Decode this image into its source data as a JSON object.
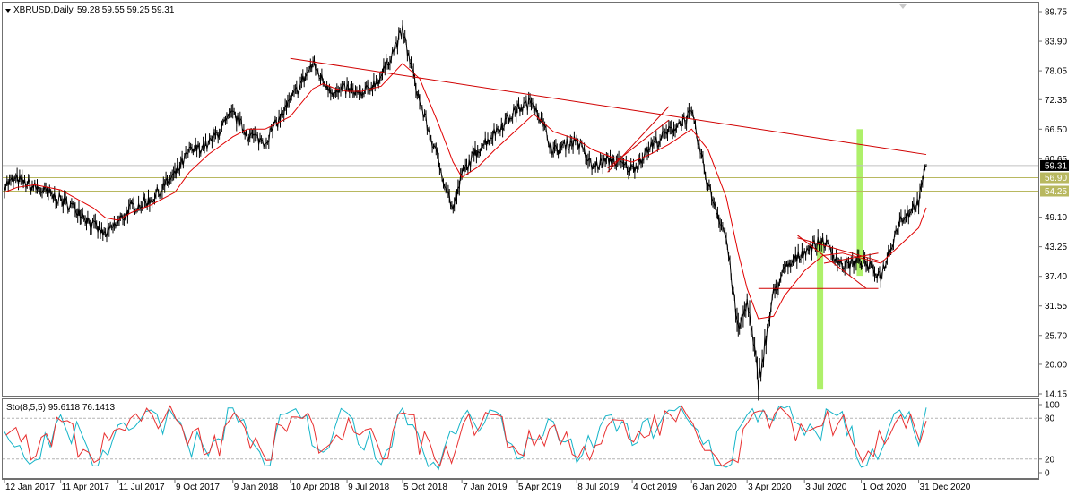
{
  "header": {
    "symbol": "XBRUSD,Daily",
    "ohlc": "59.28 59.55 59.25 59.31"
  },
  "oscillator_header": "Sto(8,5,5) 95.6118 76.1413",
  "colors": {
    "price": "#000000",
    "moving_average": "#e00000",
    "trendline": "#d00000",
    "horizontal_levels": "#b8b860",
    "current_price_line": "#c0c0c0",
    "highlight_bars": "#aef06a",
    "stoch_main": "#14b4c8",
    "stoch_signal": "#e83030",
    "border": "#707070"
  },
  "chart_data": [
    {
      "type": "line",
      "title": "XBRUSD,Daily",
      "x_tick_labels": [
        "12 Jan 2017",
        "11 Apr 2017",
        "11 Jul 2017",
        "9 Oct 2017",
        "9 Jan 2018",
        "10 Apr 2018",
        "9 Jul 2018",
        "5 Oct 2018",
        "7 Jan 2019",
        "5 Apr 2019",
        "8 Jul 2019",
        "4 Oct 2019",
        "6 Jan 2020",
        "3 Apr 2020",
        "3 Jul 2020",
        "1 Oct 2020",
        "31 Dec 2020"
      ],
      "y_tick_labels": [
        "89.75",
        "83.90",
        "78.05",
        "72.35",
        "66.50",
        "60.65",
        "49.10",
        "43.25",
        "37.40",
        "31.55",
        "25.70",
        "20.00",
        "14.15"
      ],
      "ylim": [
        14.15,
        89.75
      ],
      "x": [
        "12 Jan 2017",
        "1 Feb 2017",
        "1 Mar 2017",
        "11 Apr 2017",
        "10 May 2017",
        "1 Jun 2017",
        "21 Jun 2017",
        "11 Jul 2017",
        "1 Aug 2017",
        "1 Sep 2017",
        "9 Oct 2017",
        "1 Nov 2017",
        "1 Dec 2017",
        "9 Jan 2018",
        "1 Feb 2018",
        "1 Mar 2018",
        "10 Apr 2018",
        "16 May 2018",
        "1 Jun 2018",
        "21 Jun 2018",
        "9 Jul 2018",
        "1 Aug 2018",
        "1 Sep 2018",
        "5 Oct 2018",
        "1 Nov 2018",
        "1 Dec 2018",
        "24 Dec 2018",
        "7 Jan 2019",
        "1 Feb 2019",
        "1 Mar 2019",
        "5 Apr 2019",
        "1 May 2019",
        "1 Jun 2019",
        "8 Jul 2019",
        "1 Aug 2019",
        "1 Sep 2019",
        "4 Oct 2019",
        "1 Nov 2019",
        "1 Dec 2019",
        "6 Jan 2020",
        "1 Feb 2020",
        "1 Mar 2020",
        "20 Mar 2020",
        "3 Apr 2020",
        "21 Apr 2020",
        "15 May 2020",
        "1 Jun 2020",
        "3 Jul 2020",
        "1 Aug 2020",
        "1 Sep 2020",
        "1 Oct 2020",
        "1 Nov 2020",
        "1 Dec 2020",
        "31 Dec 2020",
        "12 Jan 2021"
      ],
      "series": [
        {
          "values": [
            55.5,
            56.5,
            55.0,
            52.5,
            50.5,
            47.5,
            45.5,
            48.0,
            51.0,
            52.5,
            57.5,
            62.0,
            63.5,
            69.5,
            65.5,
            64.0,
            72.0,
            79.5,
            76.0,
            73.5,
            74.5,
            73.0,
            77.0,
            86.0,
            72.0,
            60.0,
            50.5,
            57.5,
            62.5,
            66.0,
            70.5,
            72.0,
            62.0,
            64.5,
            59.0,
            60.5,
            58.5,
            63.0,
            66.0,
            69.5,
            55.5,
            45.0,
            26.5,
            32.5,
            16.5,
            34.0,
            38.5,
            42.5,
            44.5,
            39.5,
            40.5,
            37.5,
            48.5,
            52.0,
            59.31
          ]
        },
        {
          "values": [
            54.0,
            55.0,
            55.5,
            54.5,
            52.5,
            51.0,
            49.0,
            48.5,
            50.0,
            51.5,
            54.0,
            58.0,
            61.5,
            65.0,
            66.5,
            66.5,
            69.0,
            74.5,
            75.5,
            74.5,
            74.0,
            74.0,
            75.0,
            79.5,
            76.5,
            67.5,
            60.0,
            57.0,
            59.0,
            62.5,
            66.5,
            69.5,
            66.0,
            64.5,
            62.5,
            61.0,
            60.0,
            61.5,
            63.5,
            66.5,
            62.5,
            53.0,
            42.0,
            35.0,
            29.0,
            29.5,
            33.5,
            38.5,
            41.5,
            42.0,
            41.0,
            40.0,
            43.5,
            47.0,
            51.0
          ]
        }
      ],
      "overlays": {
        "trendlines": [
          {
            "from": [
              "10 Apr 2018",
              80.5
            ],
            "to": [
              "12 Jan 2021",
              61.5
            ]
          },
          {
            "from": [
              "26 Aug 2019",
              58.0
            ],
            "to": [
              "1 Dec 2019",
              71.0
            ]
          },
          {
            "from": [
              "26 Aug 2019",
              58.8
            ],
            "to": [
              "1 Dec 2019",
              68.3
            ]
          },
          {
            "from": [
              "22 Jun 2020",
              45.5
            ],
            "to": [
              "9 Oct 2020",
              35.0
            ]
          },
          {
            "from": [
              "22 Jun 2020",
              45.0
            ],
            "to": [
              "28 Oct 2020",
              40.5
            ]
          },
          {
            "from": [
              "3 Aug 2020",
              40.0
            ],
            "to": [
              "28 Oct 2020",
              42.0
            ]
          },
          {
            "from": [
              "21 Apr 2020",
              35.0
            ],
            "to": [
              "28 Oct 2020",
              35.0
            ]
          }
        ],
        "horizontal_levels": [
          56.9,
          54.25
        ],
        "current_price": 59.31,
        "highlight_bars": [
          {
            "x": "27 Jul 2020",
            "from": 15.0,
            "to": 44.5
          },
          {
            "x": "28 Sep 2020",
            "from": 37.5,
            "to": 66.5
          }
        ]
      },
      "price_labels": {
        "current": "59.31",
        "level_1": "56.90",
        "level_2": "54.25"
      }
    },
    {
      "type": "line",
      "title": "Sto(8,5,5) 95.6118 76.1413",
      "y_tick_labels": [
        "100",
        "80",
        "20",
        "0"
      ],
      "ylim": [
        0,
        100
      ],
      "levels": [
        80,
        20
      ],
      "x": [
        "12 Jan 2017",
        "1 Mar 2017",
        "11 Apr 2017",
        "1 Jun 2017",
        "11 Jul 2017",
        "1 Sep 2017",
        "9 Oct 2017",
        "1 Dec 2017",
        "9 Jan 2018",
        "1 Mar 2018",
        "10 Apr 2018",
        "1 Jun 2018",
        "9 Jul 2018",
        "1 Sep 2018",
        "5 Oct 2018",
        "1 Dec 2018",
        "7 Jan 2019",
        "1 Mar 2019",
        "5 Apr 2019",
        "1 Jun 2019",
        "8 Jul 2019",
        "1 Sep 2019",
        "4 Oct 2019",
        "1 Dec 2019",
        "6 Jan 2020",
        "1 Mar 2020",
        "3 Apr 2020",
        "1 Jun 2020",
        "3 Jul 2020",
        "1 Sep 2020",
        "1 Oct 2020",
        "1 Dec 2020",
        "31 Dec 2020",
        "12 Jan 2021"
      ],
      "series": [
        {
          "name": "Main",
          "values": [
            60,
            18,
            85,
            10,
            70,
            92,
            80,
            25,
            95,
            10,
            90,
            30,
            88,
            12,
            95,
            5,
            80,
            90,
            20,
            75,
            15,
            85,
            40,
            92,
            70,
            8,
            85,
            95,
            55,
            90,
            8,
            92,
            40,
            95.6118
          ]
        },
        {
          "name": "Signal",
          "values": [
            55,
            25,
            75,
            15,
            65,
            85,
            78,
            30,
            88,
            18,
            82,
            35,
            80,
            20,
            88,
            10,
            72,
            85,
            28,
            70,
            22,
            78,
            45,
            85,
            72,
            15,
            75,
            88,
            60,
            85,
            15,
            85,
            45,
            76.1413
          ]
        }
      ]
    }
  ]
}
